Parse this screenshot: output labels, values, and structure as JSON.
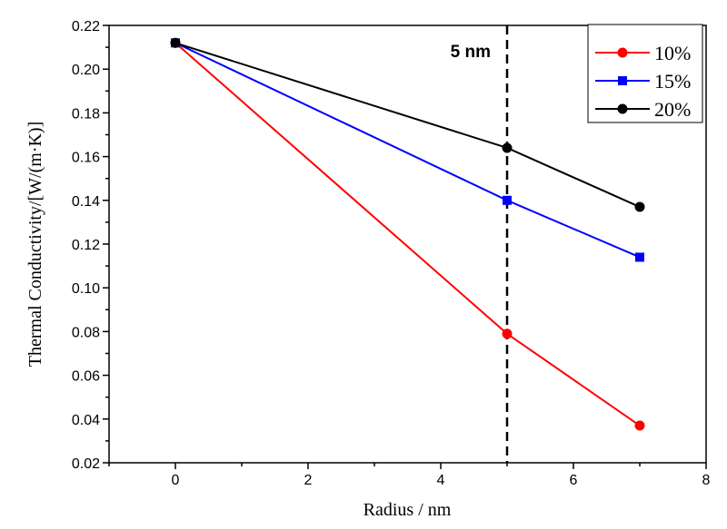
{
  "chart_data": {
    "type": "line",
    "title": "",
    "xlabel": "Radius / nm",
    "ylabel": "Thermal Conductivity/[W/(m·K)]",
    "xlim": [
      -1,
      8
    ],
    "ylim": [
      0.02,
      0.22
    ],
    "xticks": [
      0,
      2,
      4,
      6,
      8
    ],
    "xtick_labels": [
      "0",
      "2",
      "4",
      "6",
      "8"
    ],
    "yticks": [
      0.02,
      0.04,
      0.06,
      0.08,
      0.1,
      0.12,
      0.14,
      0.16,
      0.18,
      0.2,
      0.22
    ],
    "ytick_labels": [
      "0.02",
      "0.04",
      "0.06",
      "0.08",
      "0.10",
      "0.12",
      "0.14",
      "0.16",
      "0.18",
      "0.20",
      "0.22"
    ],
    "grid": false,
    "legend_position": "top-right",
    "x": [
      0,
      5,
      7
    ],
    "series": [
      {
        "name": "10%",
        "values": [
          0.212,
          0.079,
          0.037
        ],
        "color": "#ff0000",
        "marker": "circle"
      },
      {
        "name": "15%",
        "values": [
          0.212,
          0.14,
          0.114
        ],
        "color": "#0000ff",
        "marker": "square"
      },
      {
        "name": "20%",
        "values": [
          0.212,
          0.164,
          0.137
        ],
        "color": "#000000",
        "marker": "circle"
      }
    ],
    "annotations": [
      {
        "text": "5 nm",
        "x_line": 5,
        "style": "dashed vertical line"
      }
    ]
  }
}
